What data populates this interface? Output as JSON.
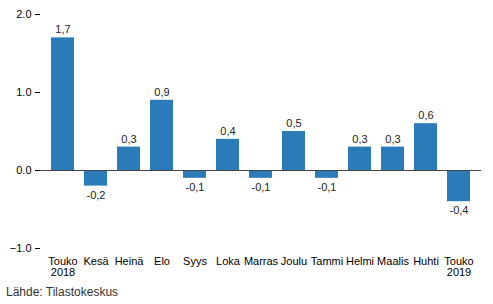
{
  "chart_data": {
    "type": "bar",
    "categories": [
      "Touko\n2018",
      "Kesä",
      "Heinä",
      "Elo",
      "Syys",
      "Loka",
      "Marras",
      "Joulu",
      "Tammi",
      "Helmi",
      "Maalis",
      "Huhti",
      "Touko\n2019"
    ],
    "values": [
      1.7,
      -0.2,
      0.3,
      0.9,
      -0.1,
      0.4,
      -0.1,
      0.5,
      -0.1,
      0.3,
      0.3,
      0.6,
      -0.4
    ],
    "value_labels": [
      "1,7",
      "-0,2",
      "0,3",
      "0,9",
      "-0,1",
      "0,4",
      "-0,1",
      "0,5",
      "-0,1",
      "0,3",
      "0,3",
      "0,6",
      "-0,4"
    ],
    "data_labels": true,
    "color": "#2b7bb9",
    "ylim": [
      -1,
      2
    ],
    "yticks": [
      -1,
      0,
      1,
      2
    ],
    "grid": false,
    "caption": "Lähde: Tilastokeskus"
  }
}
